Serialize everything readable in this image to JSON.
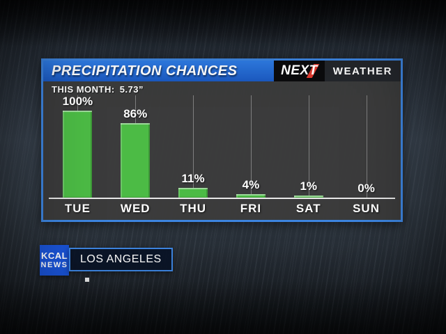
{
  "header": {
    "title": "PRECIPITATION CHANCES",
    "brand": {
      "next": "NEXT",
      "weather": "WEATHER"
    }
  },
  "subheader": {
    "label": "THIS MONTH:",
    "value": "5.73”"
  },
  "chart_data": {
    "type": "bar",
    "title": "PRECIPITATION CHANCES",
    "categories": [
      "TUE",
      "WED",
      "THU",
      "FRI",
      "SAT",
      "SUN"
    ],
    "values": [
      100,
      86,
      11,
      4,
      1,
      0
    ],
    "value_labels": [
      "100%",
      "86%",
      "11%",
      "4%",
      "1%",
      "0%"
    ],
    "ylim": [
      0,
      100
    ],
    "grid": "vertical-line-per-category",
    "legend_position": "none",
    "bar_color": "#4cbb45"
  },
  "lower_third": {
    "station": {
      "line1": "KCAL",
      "line2": "NEWS"
    },
    "location": "LOS ANGELES"
  },
  "colors": {
    "header_blue": "#2f7de6",
    "panel_border_blue": "#3d85e0",
    "bar_green": "#4cbb45",
    "brand_red": "#e03a2f",
    "kcal_blue": "#1a54d8"
  }
}
